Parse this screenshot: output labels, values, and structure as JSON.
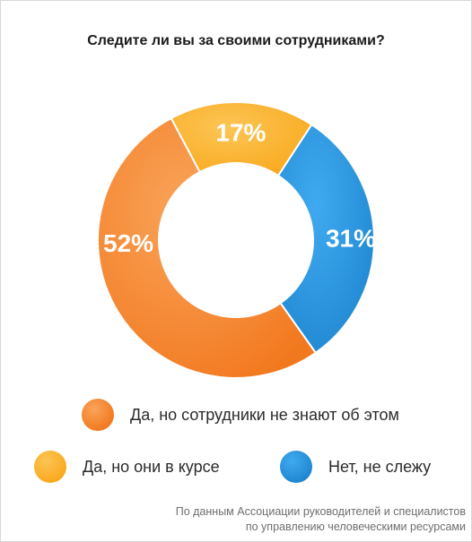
{
  "chart_data": {
    "type": "pie",
    "title": "Следите ли вы за своими сотрудниками?",
    "donut": true,
    "slices": [
      {
        "label": "Да, но сотрудники не знают об этом",
        "value": 52,
        "value_label": "52%",
        "color": "#f2781e",
        "color_light": "#f9a45a"
      },
      {
        "label": "Да, но они в курсе",
        "value": 17,
        "value_label": "17%",
        "color": "#f9a81c",
        "color_light": "#fcc555"
      },
      {
        "label": "Нет, не слежу",
        "value": 31,
        "value_label": "31%",
        "color": "#1e86d0",
        "color_light": "#40aaf0"
      }
    ],
    "legend_position": "bottom"
  },
  "source": {
    "line1": "По данным Ассоциации руководителей и специалистов",
    "line2": "по управлению человеческими ресурсами"
  }
}
